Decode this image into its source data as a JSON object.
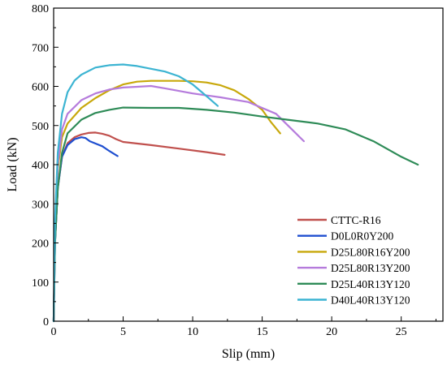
{
  "chart_data": {
    "type": "line",
    "title": "",
    "xlabel": "Slip (mm)",
    "ylabel": "Load (kN)",
    "xlim": [
      0,
      28
    ],
    "ylim": [
      0,
      800
    ],
    "xticks": [
      0,
      5,
      10,
      15,
      20,
      25
    ],
    "yticks": [
      0,
      100,
      200,
      300,
      400,
      500,
      600,
      700,
      800
    ],
    "grid": false,
    "legend_position": "bottom-right",
    "series": [
      {
        "name": "CTTC-R16",
        "color": "#c0504d",
        "x": [
          0,
          0.1,
          0.3,
          0.6,
          1.0,
          1.5,
          2.0,
          2.5,
          3.0,
          3.5,
          4.0,
          4.5,
          5.0,
          7.0,
          9.0,
          11.0,
          12.3
        ],
        "y": [
          0,
          200,
          340,
          420,
          455,
          470,
          477,
          481,
          482,
          479,
          474,
          465,
          458,
          450,
          441,
          432,
          425
        ]
      },
      {
        "name": "D0L0R0Y200",
        "color": "#1f4fd0",
        "x": [
          0,
          0.1,
          0.3,
          0.6,
          1.0,
          1.5,
          2.0,
          2.3,
          2.6,
          3.0,
          3.5,
          4.0,
          4.6
        ],
        "y": [
          0,
          200,
          340,
          420,
          450,
          465,
          470,
          468,
          460,
          454,
          447,
          435,
          422
        ]
      },
      {
        "name": "D25L80R16Y200",
        "color": "#c8a80b",
        "x": [
          0,
          0.1,
          0.3,
          0.6,
          1.0,
          2.0,
          3.0,
          4.0,
          5.0,
          6.0,
          7.0,
          8.0,
          9.0,
          10.0,
          11.0,
          12.0,
          13.0,
          14.0,
          15.0,
          15.6,
          16.3
        ],
        "y": [
          0,
          230,
          390,
          470,
          505,
          545,
          570,
          590,
          605,
          612,
          614,
          614,
          614,
          613,
          610,
          603,
          590,
          568,
          540,
          510,
          480
        ]
      },
      {
        "name": "D25L80R13Y200",
        "color": "#b57bdc",
        "x": [
          0,
          0.1,
          0.3,
          0.6,
          1.0,
          2.0,
          3.0,
          4.0,
          5.0,
          6.0,
          7.0,
          8.0,
          10.0,
          12.0,
          14.0,
          16.0,
          17.0,
          18.0
        ],
        "y": [
          0,
          240,
          400,
          490,
          530,
          565,
          582,
          592,
          597,
          599,
          601,
          595,
          582,
          572,
          560,
          530,
          495,
          460
        ]
      },
      {
        "name": "D25L40R13Y120",
        "color": "#2e8b57",
        "x": [
          0,
          0.1,
          0.3,
          0.6,
          1.0,
          2.0,
          3.0,
          4.0,
          5.0,
          7.0,
          9.0,
          11.0,
          13.0,
          15.0,
          17.0,
          19.0,
          21.0,
          23.0,
          25.0,
          26.2
        ],
        "y": [
          0,
          200,
          340,
          430,
          480,
          515,
          532,
          540,
          546,
          545,
          545,
          540,
          533,
          523,
          514,
          505,
          490,
          460,
          420,
          400
        ]
      },
      {
        "name": "D40L40R13Y120",
        "color": "#3cb4d2",
        "x": [
          0,
          0.1,
          0.3,
          0.6,
          1.0,
          1.5,
          2.0,
          3.0,
          4.0,
          5.0,
          6.0,
          7.0,
          8.0,
          9.0,
          10.0,
          11.0,
          11.8
        ],
        "y": [
          0,
          260,
          430,
          530,
          585,
          615,
          630,
          648,
          654,
          656,
          652,
          645,
          638,
          626,
          605,
          575,
          550
        ]
      }
    ]
  }
}
